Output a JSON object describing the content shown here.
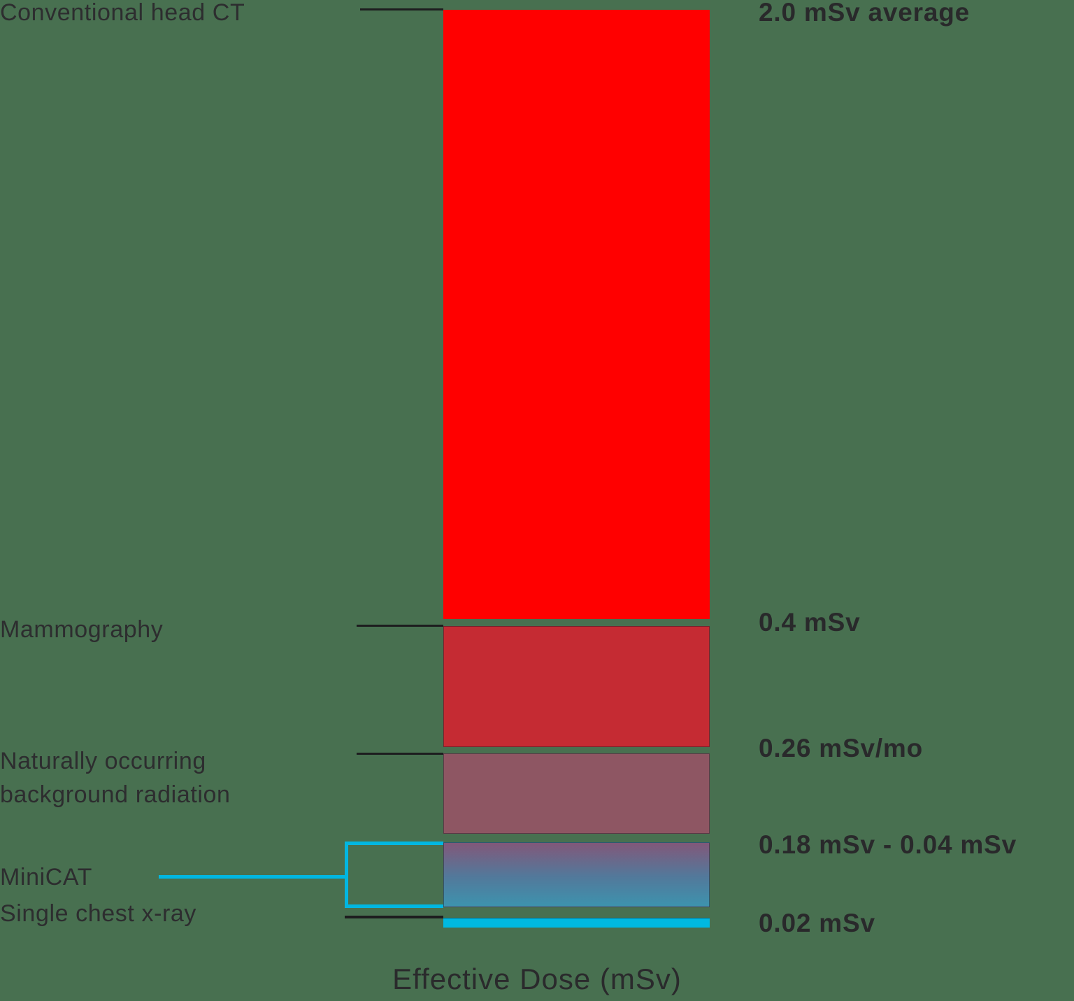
{
  "chart_data": {
    "type": "bar",
    "title": "",
    "xlabel": "Effective Dose (mSv)",
    "unit": "mSv",
    "categories": [
      "Conventional head CT",
      "Mammography",
      "Naturally occurring\nbackground radiation",
      "MiniCAT",
      "Single chest x-ray"
    ],
    "values": [
      2.0,
      0.4,
      0.26,
      [
        0.18,
        0.04
      ],
      0.02
    ],
    "value_labels": [
      "2.0 mSv average",
      "0.4 mSv",
      "0.26 mSv/mo",
      "0.18 mSv - 0.04 mSv",
      "0.02 mSv"
    ],
    "colors": [
      "#ff0000",
      "#c52b33",
      "#8e5663",
      "linear-gradient(180deg, #82587a 0%, #53789a 52%, #3d93ae 100%)",
      "#00b9e1"
    ],
    "background_color": "#487050",
    "accent_cyan": "#00b7e2",
    "tick_color": "#1d1d1f",
    "text_color": "#2d2d2f",
    "legend": "none",
    "grid": "off"
  }
}
